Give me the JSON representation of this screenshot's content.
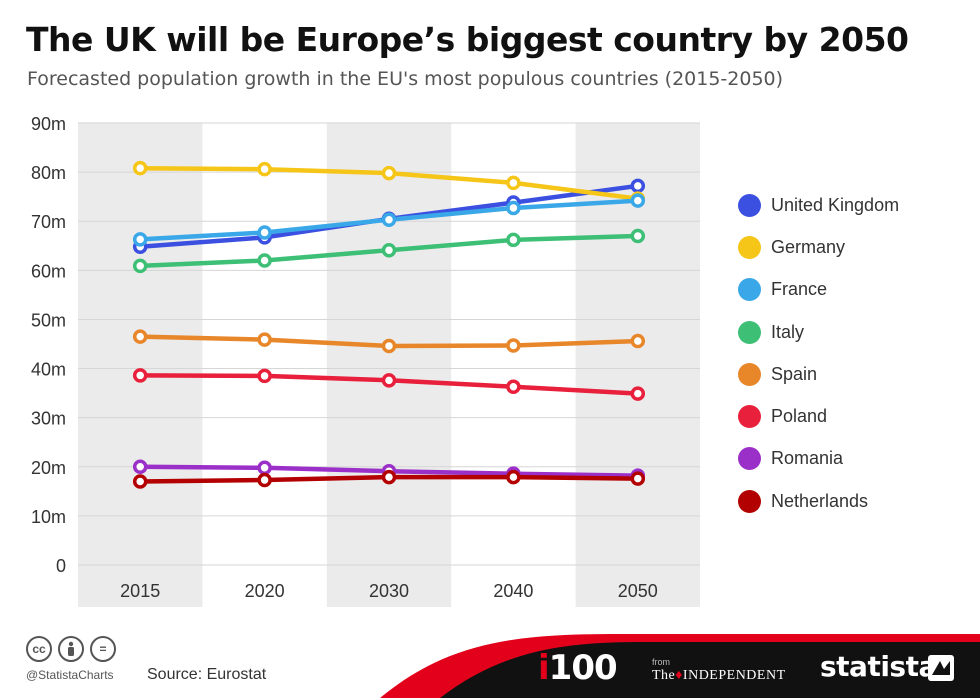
{
  "header": {
    "title": "The UK will be Europe’s biggest country by 2050",
    "subtitle": "Forecasted population growth in the EU's most populous countries (2015-2050)"
  },
  "chart_data": {
    "type": "line",
    "title": "The UK will be Europe’s biggest country by 2050",
    "subtitle": "Forecasted population growth in the EU's most populous countries (2015-2050)",
    "categories": [
      "2015",
      "2020",
      "2030",
      "2040",
      "2050"
    ],
    "ylim": [
      0,
      90
    ],
    "yticks": [
      0,
      10,
      20,
      30,
      40,
      50,
      60,
      70,
      80,
      90
    ],
    "ytick_labels": [
      "0",
      "10m",
      "20m",
      "30m",
      "40m",
      "50m",
      "60m",
      "70m",
      "80m",
      "90m"
    ],
    "legend_position": "right",
    "series": [
      {
        "name": "United Kingdom",
        "color": "#3b50e0",
        "values": [
          64.8,
          66.7,
          70.5,
          73.8,
          77.2
        ]
      },
      {
        "name": "Germany",
        "color": "#f5c518",
        "values": [
          80.8,
          80.6,
          79.8,
          77.8,
          74.6
        ]
      },
      {
        "name": "France",
        "color": "#3aa8e8",
        "values": [
          66.3,
          67.7,
          70.3,
          72.7,
          74.2
        ]
      },
      {
        "name": "Italy",
        "color": "#3dbf76",
        "values": [
          60.9,
          62.0,
          64.1,
          66.2,
          67.0
        ]
      },
      {
        "name": "Spain",
        "color": "#e8862a",
        "values": [
          46.5,
          45.9,
          44.6,
          44.7,
          45.6
        ]
      },
      {
        "name": "Poland",
        "color": "#e8203b",
        "values": [
          38.6,
          38.5,
          37.6,
          36.3,
          34.9
        ]
      },
      {
        "name": "Romania",
        "color": "#9b30c8",
        "values": [
          20.0,
          19.8,
          19.1,
          18.6,
          18.2
        ]
      },
      {
        "name": "Netherlands",
        "color": "#b30000",
        "values": [
          17.0,
          17.3,
          17.9,
          17.9,
          17.6
        ]
      }
    ]
  },
  "footer": {
    "cc_icons": [
      "cc",
      "by",
      "nd"
    ],
    "handle": "@StatistaCharts",
    "source": "Source: Eurostat",
    "i100_logo": "i100",
    "from_label": "from",
    "independent_logo": "The INDEPENDENT",
    "statista_logo": "statista"
  }
}
